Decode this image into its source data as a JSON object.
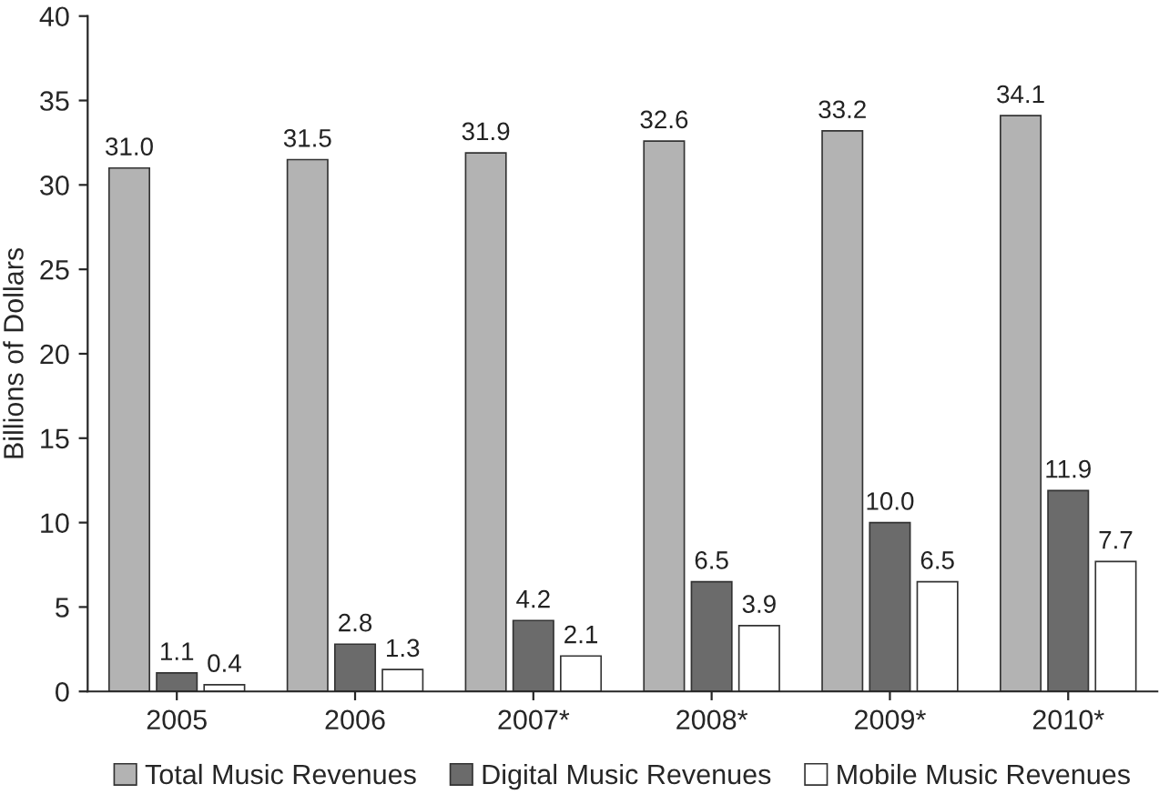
{
  "chart_data": {
    "type": "bar",
    "ylabel": "Billions of Dollars",
    "categories": [
      "2005",
      "2006",
      "2007*",
      "2008*",
      "2009*",
      "2010*"
    ],
    "series": [
      {
        "name": "Total Music Revenues",
        "color": "#b3b3b3",
        "values": [
          31.0,
          31.5,
          31.9,
          32.6,
          33.2,
          34.1
        ],
        "value_labels": [
          "31.0",
          "31.5",
          "31.9",
          "32.6",
          "33.2",
          "34.1"
        ]
      },
      {
        "name": "Digital Music Revenues",
        "color": "#6b6b6b",
        "values": [
          1.1,
          2.8,
          4.2,
          6.5,
          10.0,
          11.9
        ],
        "value_labels": [
          "1.1",
          "2.8",
          "4.2",
          "6.5",
          "10.0",
          "11.9"
        ]
      },
      {
        "name": "Mobile Music Revenues",
        "color": "#ffffff",
        "values": [
          0.4,
          1.3,
          2.1,
          3.9,
          6.5,
          7.7
        ],
        "value_labels": [
          "0.4",
          "1.3",
          "2.1",
          "3.9",
          "6.5",
          "7.7"
        ]
      }
    ],
    "ylim": [
      0,
      40
    ],
    "yticks": [
      0,
      5,
      10,
      15,
      20,
      25,
      30,
      35,
      40
    ],
    "grid": false,
    "legend": "bottom"
  }
}
